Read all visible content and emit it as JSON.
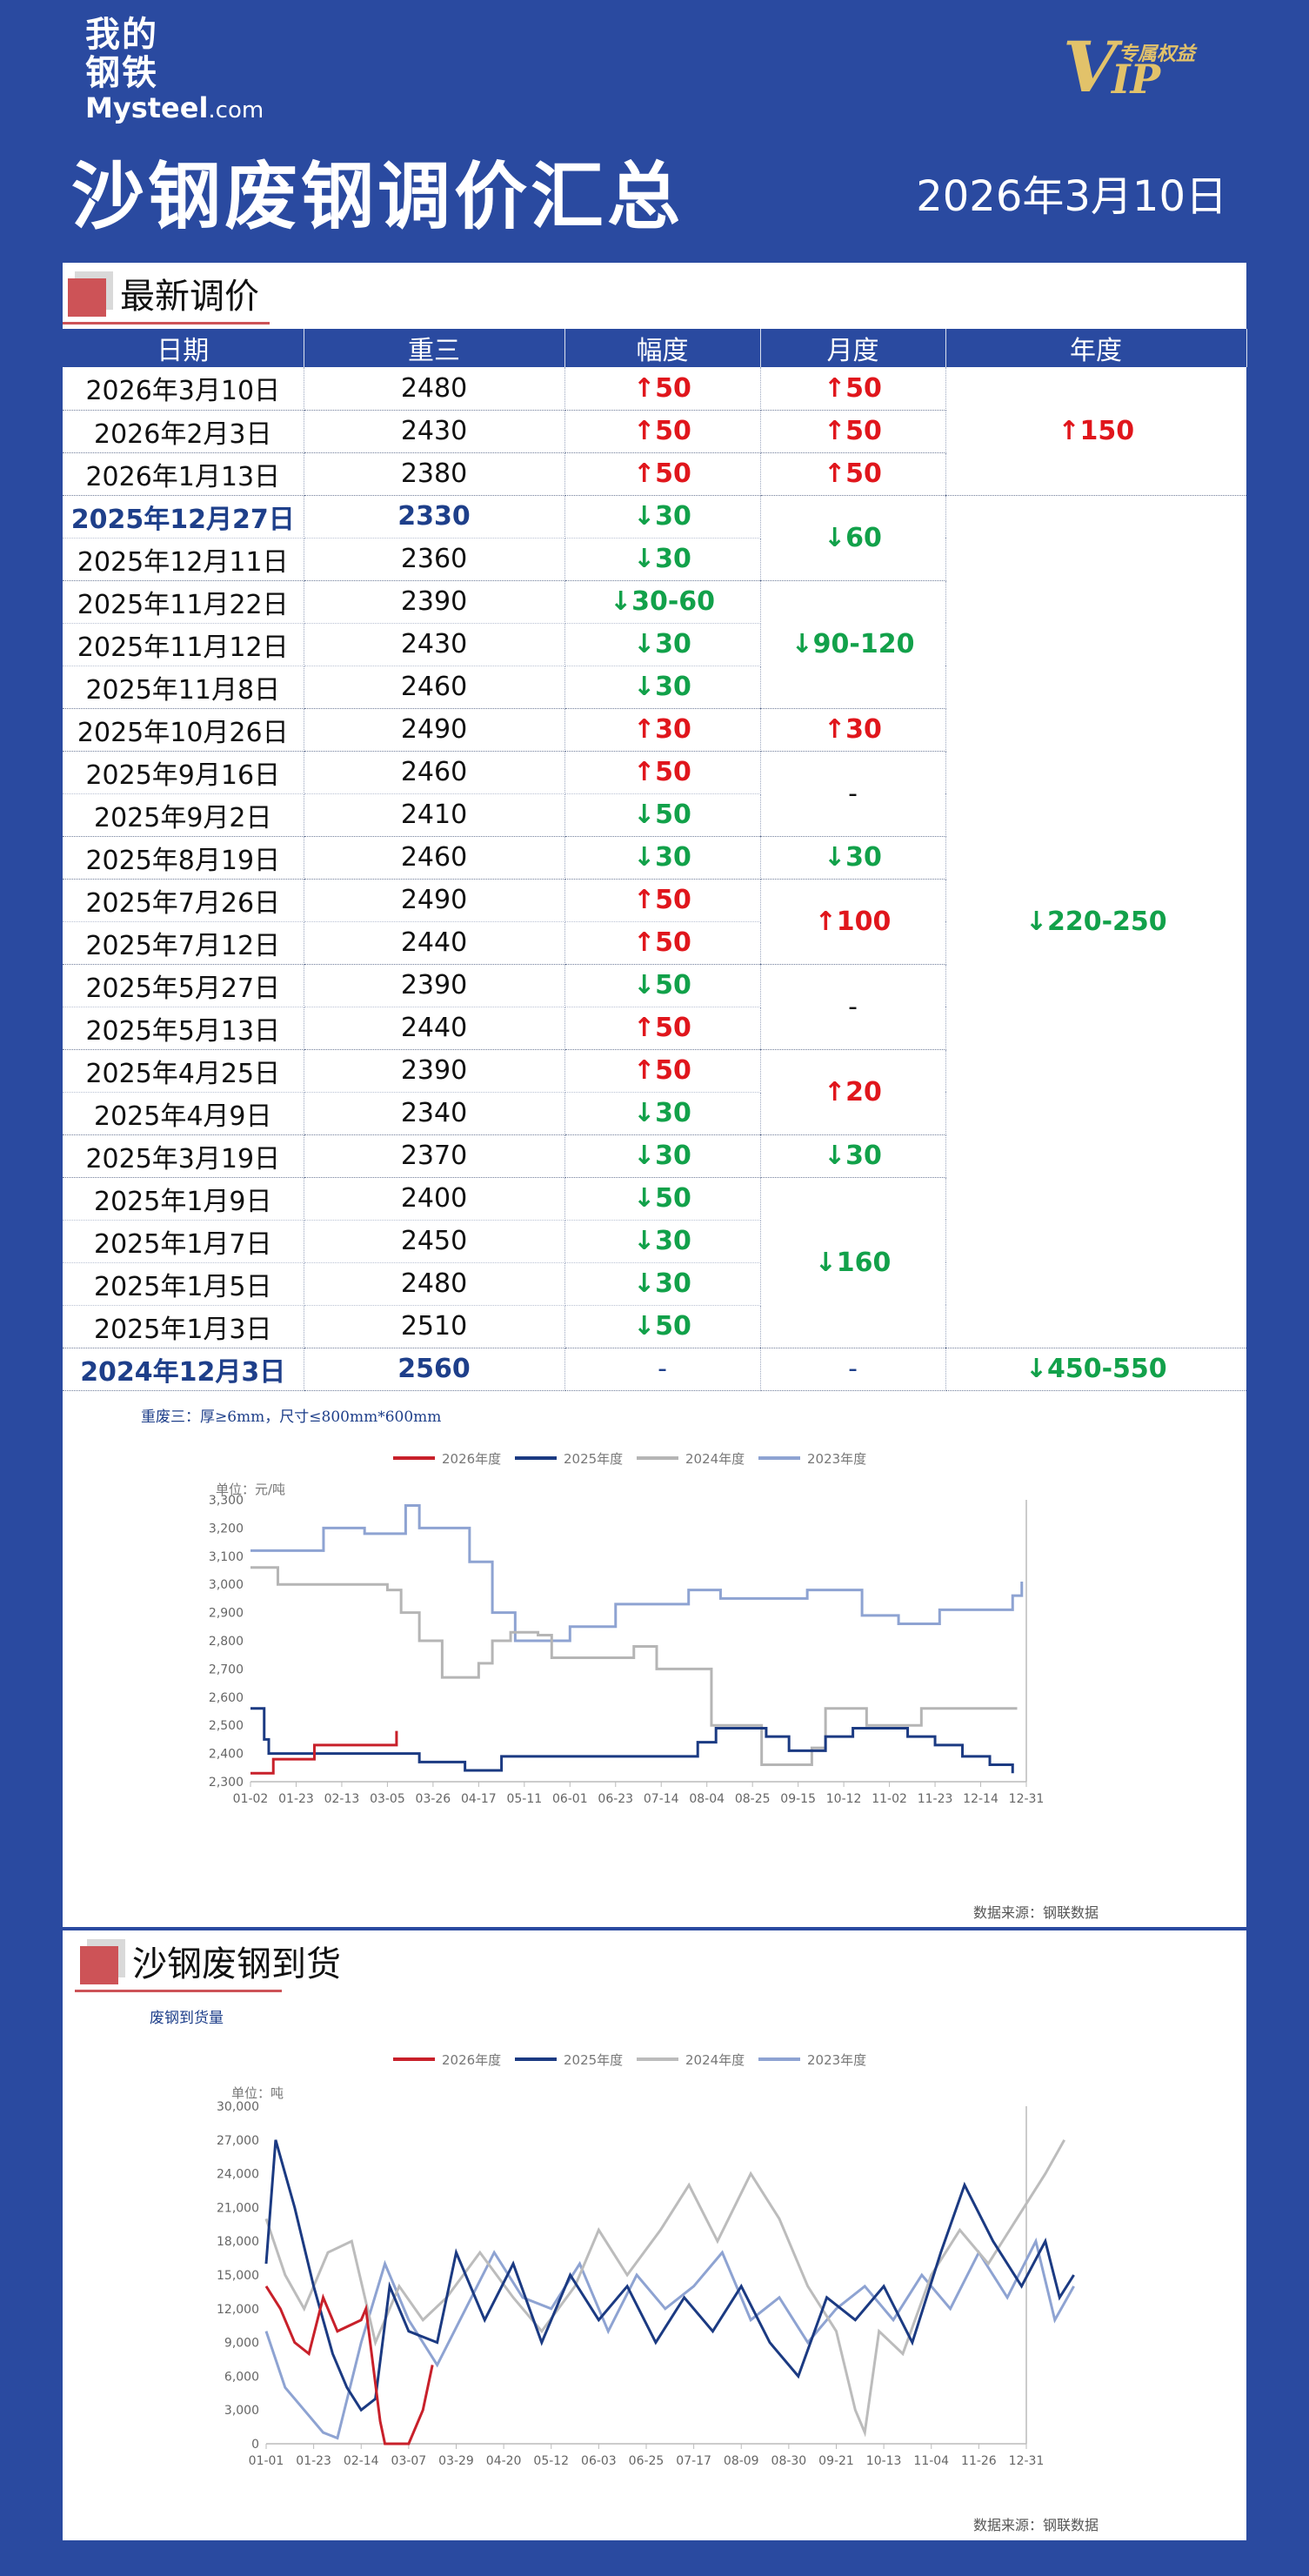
{
  "logo": {
    "line1": "我的",
    "line2": "钢铁",
    "en_main": "Mysteel",
    "en_suffix": ".com"
  },
  "vip": {
    "v": "V",
    "ip": "IP",
    "tag": "专属权益"
  },
  "title": "沙钢废钢调价汇总",
  "date": "2026年3月10日",
  "section1": {
    "label": "最新调价"
  },
  "table": {
    "headers": [
      "日期",
      "重三",
      "幅度",
      "月度",
      "年度"
    ],
    "rows": [
      {
        "date": "2026年3月10日",
        "price": "2480",
        "change": "↑50",
        "dir": "up",
        "bold": false
      },
      {
        "date": "2026年2月3日",
        "price": "2430",
        "change": "↑50",
        "dir": "up",
        "bold": false
      },
      {
        "date": "2026年1月13日",
        "price": "2380",
        "change": "↑50",
        "dir": "up",
        "bold": false
      },
      {
        "date": "2025年12月27日",
        "price": "2330",
        "change": "↓30",
        "dir": "dn",
        "bold": true
      },
      {
        "date": "2025年12月11日",
        "price": "2360",
        "change": "↓30",
        "dir": "dn",
        "bold": false
      },
      {
        "date": "2025年11月22日",
        "price": "2390",
        "change": "↓30-60",
        "dir": "dn",
        "bold": false
      },
      {
        "date": "2025年11月12日",
        "price": "2430",
        "change": "↓30",
        "dir": "dn",
        "bold": false
      },
      {
        "date": "2025年11月8日",
        "price": "2460",
        "change": "↓30",
        "dir": "dn",
        "bold": false
      },
      {
        "date": "2025年10月26日",
        "price": "2490",
        "change": "↑30",
        "dir": "up",
        "bold": false
      },
      {
        "date": "2025年9月16日",
        "price": "2460",
        "change": "↑50",
        "dir": "up",
        "bold": false
      },
      {
        "date": "2025年9月2日",
        "price": "2410",
        "change": "↓50",
        "dir": "dn",
        "bold": false
      },
      {
        "date": "2025年8月19日",
        "price": "2460",
        "change": "↓30",
        "dir": "dn",
        "bold": false
      },
      {
        "date": "2025年7月26日",
        "price": "2490",
        "change": "↑50",
        "dir": "up",
        "bold": false
      },
      {
        "date": "2025年7月12日",
        "price": "2440",
        "change": "↑50",
        "dir": "up",
        "bold": false
      },
      {
        "date": "2025年5月27日",
        "price": "2390",
        "change": "↓50",
        "dir": "dn",
        "bold": false
      },
      {
        "date": "2025年5月13日",
        "price": "2440",
        "change": "↑50",
        "dir": "up",
        "bold": false
      },
      {
        "date": "2025年4月25日",
        "price": "2390",
        "change": "↑50",
        "dir": "up",
        "bold": false
      },
      {
        "date": "2025年4月9日",
        "price": "2340",
        "change": "↓30",
        "dir": "dn",
        "bold": false
      },
      {
        "date": "2025年3月19日",
        "price": "2370",
        "change": "↓30",
        "dir": "dn",
        "bold": false
      },
      {
        "date": "2025年1月9日",
        "price": "2400",
        "change": "↓50",
        "dir": "dn",
        "bold": false
      },
      {
        "date": "2025年1月7日",
        "price": "2450",
        "change": "↓30",
        "dir": "dn",
        "bold": false
      },
      {
        "date": "2025年1月5日",
        "price": "2480",
        "change": "↓30",
        "dir": "dn",
        "bold": false
      },
      {
        "date": "2025年1月3日",
        "price": "2510",
        "change": "↓50",
        "dir": "dn",
        "bold": false
      },
      {
        "date": "2024年12月3日",
        "price": "2560",
        "change": "-",
        "dir": "neutral",
        "bold": true
      }
    ],
    "monthly": [
      {
        "start": 0,
        "span": 1,
        "text": "↑50",
        "dir": "up"
      },
      {
        "start": 1,
        "span": 1,
        "text": "↑50",
        "dir": "up"
      },
      {
        "start": 2,
        "span": 1,
        "text": "↑50",
        "dir": "up"
      },
      {
        "start": 3,
        "span": 2,
        "text": "↓60",
        "dir": "dn"
      },
      {
        "start": 5,
        "span": 3,
        "text": "↓90-120",
        "dir": "dn"
      },
      {
        "start": 8,
        "span": 1,
        "text": "↑30",
        "dir": "up"
      },
      {
        "start": 9,
        "span": 2,
        "text": "-",
        "dir": "plain"
      },
      {
        "start": 11,
        "span": 1,
        "text": "↓30",
        "dir": "dn"
      },
      {
        "start": 12,
        "span": 2,
        "text": "↑100",
        "dir": "up"
      },
      {
        "start": 14,
        "span": 2,
        "text": "-",
        "dir": "plain"
      },
      {
        "start": 16,
        "span": 2,
        "text": "↑20",
        "dir": "up"
      },
      {
        "start": 18,
        "span": 1,
        "text": "↓30",
        "dir": "dn"
      },
      {
        "start": 19,
        "span": 4,
        "text": "↓160",
        "dir": "dn"
      },
      {
        "start": 23,
        "span": 1,
        "text": "-",
        "dir": "neutral"
      }
    ],
    "yearly": [
      {
        "start": 0,
        "span": 3,
        "text": "↑150",
        "dir": "up"
      },
      {
        "start": 3,
        "span": 20,
        "text": "↓220-250",
        "dir": "dn"
      },
      {
        "start": 23,
        "span": 1,
        "text": "↓450-550",
        "dir": "dn"
      }
    ]
  },
  "note": "重废三：厚≥6mm，尺寸≤800mm*600mm",
  "chart1": {
    "chart_data": {
      "type": "line",
      "unit": "单位：元/吨",
      "x_ticks": [
        "01-02",
        "01-23",
        "02-13",
        "03-05",
        "03-26",
        "04-17",
        "05-11",
        "06-01",
        "06-23",
        "07-14",
        "08-04",
        "08-25",
        "09-15",
        "10-12",
        "11-02",
        "11-23",
        "12-14",
        "12-31"
      ],
      "ylim": [
        2300,
        3300
      ],
      "y_ticks": [
        "2,300",
        "2,400",
        "2,500",
        "2,600",
        "2,700",
        "2,800",
        "2,900",
        "3,000",
        "3,100",
        "3,200",
        "3,300"
      ],
      "series": [
        {
          "name": "2026年度",
          "color": "#c8202a",
          "points": [
            [
              0,
              2330
            ],
            [
              0.5,
              2380
            ],
            [
              1.4,
              2430
            ],
            [
              3.2,
              2480
            ]
          ]
        },
        {
          "name": "2025年度",
          "color": "#1b3a82",
          "points": [
            [
              0,
              2560
            ],
            [
              0.3,
              2450
            ],
            [
              0.4,
              2400
            ],
            [
              3.7,
              2370
            ],
            [
              4.7,
              2340
            ],
            [
              5.5,
              2390
            ],
            [
              9.8,
              2440
            ],
            [
              10.2,
              2490
            ],
            [
              11.3,
              2460
            ],
            [
              11.8,
              2410
            ],
            [
              12.6,
              2460
            ],
            [
              13.2,
              2490
            ],
            [
              14.4,
              2460
            ],
            [
              15.0,
              2430
            ],
            [
              15.6,
              2390
            ],
            [
              16.2,
              2360
            ],
            [
              16.7,
              2330
            ]
          ]
        },
        {
          "name": "2024年度",
          "color": "#b5b5b5",
          "points": [
            [
              0,
              3060
            ],
            [
              0.6,
              3000
            ],
            [
              3.0,
              2980
            ],
            [
              3.3,
              2900
            ],
            [
              3.7,
              2800
            ],
            [
              4.2,
              2670
            ],
            [
              5.0,
              2720
            ],
            [
              5.3,
              2800
            ],
            [
              5.7,
              2830
            ],
            [
              6.3,
              2820
            ],
            [
              6.6,
              2740
            ],
            [
              8.4,
              2780
            ],
            [
              8.9,
              2700
            ],
            [
              10.1,
              2500
            ],
            [
              11.2,
              2360
            ],
            [
              12.0,
              2360
            ],
            [
              12.3,
              2420
            ],
            [
              12.6,
              2560
            ],
            [
              13.5,
              2500
            ],
            [
              14.7,
              2560
            ],
            [
              16.8,
              2560
            ]
          ]
        },
        {
          "name": "2023年度",
          "color": "#8ea3d2",
          "points": [
            [
              0,
              3120
            ],
            [
              1.3,
              3120
            ],
            [
              1.6,
              3200
            ],
            [
              2.5,
              3180
            ],
            [
              3.4,
              3280
            ],
            [
              3.7,
              3200
            ],
            [
              4.8,
              3080
            ],
            [
              5.3,
              2900
            ],
            [
              5.8,
              2800
            ],
            [
              6.6,
              2800
            ],
            [
              7.0,
              2850
            ],
            [
              8.0,
              2930
            ],
            [
              9.2,
              2930
            ],
            [
              9.6,
              2980
            ],
            [
              10.3,
              2950
            ],
            [
              12.2,
              2980
            ],
            [
              13.4,
              2890
            ],
            [
              14.2,
              2860
            ],
            [
              15.1,
              2910
            ],
            [
              16.7,
              2960
            ],
            [
              16.9,
              3010
            ]
          ]
        }
      ]
    },
    "source": "数据来源：钢联数据"
  },
  "section2": {
    "label": "沙钢废钢到货",
    "sub": "废钢到货量"
  },
  "chart2": {
    "chart_data": {
      "type": "line",
      "unit": "单位：吨",
      "x_ticks": [
        "01-01",
        "01-23",
        "02-14",
        "03-07",
        "03-29",
        "04-20",
        "05-12",
        "06-03",
        "06-25",
        "07-17",
        "08-09",
        "08-30",
        "09-21",
        "10-13",
        "11-04",
        "11-26",
        "12-31"
      ],
      "ylim": [
        0,
        30000
      ],
      "y_ticks": [
        "0",
        "3,000",
        "6,000",
        "9,000",
        "12,000",
        "15,000",
        "18,000",
        "21,000",
        "24,000",
        "27,000",
        "30,000"
      ],
      "series": [
        {
          "name": "2026年度",
          "color": "#c8202a",
          "points": [
            [
              0,
              14000
            ],
            [
              0.3,
              12000
            ],
            [
              0.6,
              9000
            ],
            [
              0.9,
              8000
            ],
            [
              1.2,
              13000
            ],
            [
              1.5,
              10000
            ],
            [
              2.0,
              11000
            ],
            [
              2.1,
              12000
            ],
            [
              2.4,
              2000
            ],
            [
              2.5,
              0
            ],
            [
              3.0,
              0
            ],
            [
              3.3,
              3000
            ],
            [
              3.5,
              7000
            ]
          ]
        },
        {
          "name": "2025年度",
          "color": "#1b3a82",
          "points": [
            [
              0,
              16000
            ],
            [
              0.2,
              27000
            ],
            [
              0.6,
              21000
            ],
            [
              1.0,
              14000
            ],
            [
              1.4,
              8000
            ],
            [
              1.7,
              5000
            ],
            [
              2.0,
              3000
            ],
            [
              2.3,
              4000
            ],
            [
              2.6,
              14000
            ],
            [
              3.0,
              10000
            ],
            [
              3.6,
              9000
            ],
            [
              4.0,
              17000
            ],
            [
              4.6,
              11000
            ],
            [
              5.2,
              16000
            ],
            [
              5.8,
              9000
            ],
            [
              6.4,
              15000
            ],
            [
              7.0,
              11000
            ],
            [
              7.6,
              14000
            ],
            [
              8.2,
              9000
            ],
            [
              8.8,
              13000
            ],
            [
              9.4,
              10000
            ],
            [
              10.0,
              14000
            ],
            [
              10.6,
              9000
            ],
            [
              11.2,
              6000
            ],
            [
              11.8,
              13000
            ],
            [
              12.4,
              11000
            ],
            [
              13.0,
              14000
            ],
            [
              13.6,
              9000
            ],
            [
              14.2,
              17000
            ],
            [
              14.7,
              23000
            ],
            [
              15.3,
              18000
            ],
            [
              15.9,
              14000
            ],
            [
              16.4,
              18000
            ],
            [
              16.7,
              13000
            ],
            [
              17.0,
              15000
            ]
          ]
        },
        {
          "name": "2024年度",
          "color": "#bcbcbc",
          "points": [
            [
              0,
              20000
            ],
            [
              0.4,
              15000
            ],
            [
              0.8,
              12000
            ],
            [
              1.3,
              17000
            ],
            [
              1.8,
              18000
            ],
            [
              2.3,
              9000
            ],
            [
              2.8,
              14000
            ],
            [
              3.3,
              11000
            ],
            [
              3.8,
              13000
            ],
            [
              4.5,
              17000
            ],
            [
              5.2,
              13000
            ],
            [
              5.8,
              10000
            ],
            [
              6.5,
              14000
            ],
            [
              7.0,
              19000
            ],
            [
              7.6,
              15000
            ],
            [
              8.3,
              19000
            ],
            [
              8.9,
              23000
            ],
            [
              9.5,
              18000
            ],
            [
              10.2,
              24000
            ],
            [
              10.8,
              20000
            ],
            [
              11.4,
              14000
            ],
            [
              12.0,
              10000
            ],
            [
              12.4,
              3000
            ],
            [
              12.6,
              1000
            ],
            [
              12.9,
              10000
            ],
            [
              13.4,
              8000
            ],
            [
              14.0,
              15000
            ],
            [
              14.6,
              19000
            ],
            [
              15.2,
              16000
            ],
            [
              15.8,
              20000
            ],
            [
              16.4,
              24000
            ],
            [
              16.8,
              27000
            ]
          ]
        },
        {
          "name": "2023年度",
          "color": "#8ea3d2",
          "points": [
            [
              0,
              10000
            ],
            [
              0.4,
              5000
            ],
            [
              0.8,
              3000
            ],
            [
              1.2,
              1000
            ],
            [
              1.5,
              500
            ],
            [
              2.0,
              9000
            ],
            [
              2.5,
              16000
            ],
            [
              3.0,
              11000
            ],
            [
              3.6,
              7000
            ],
            [
              4.2,
              12000
            ],
            [
              4.8,
              17000
            ],
            [
              5.4,
              13000
            ],
            [
              6.0,
              12000
            ],
            [
              6.6,
              16000
            ],
            [
              7.2,
              10000
            ],
            [
              7.8,
              15000
            ],
            [
              8.4,
              12000
            ],
            [
              9.0,
              14000
            ],
            [
              9.6,
              17000
            ],
            [
              10.2,
              11000
            ],
            [
              10.8,
              13000
            ],
            [
              11.4,
              9000
            ],
            [
              12.0,
              12000
            ],
            [
              12.6,
              14000
            ],
            [
              13.2,
              11000
            ],
            [
              13.8,
              15000
            ],
            [
              14.4,
              12000
            ],
            [
              15.0,
              17000
            ],
            [
              15.6,
              13000
            ],
            [
              16.2,
              18000
            ],
            [
              16.6,
              11000
            ],
            [
              17.0,
              14000
            ]
          ]
        }
      ]
    },
    "source": "数据来源：钢联数据"
  }
}
